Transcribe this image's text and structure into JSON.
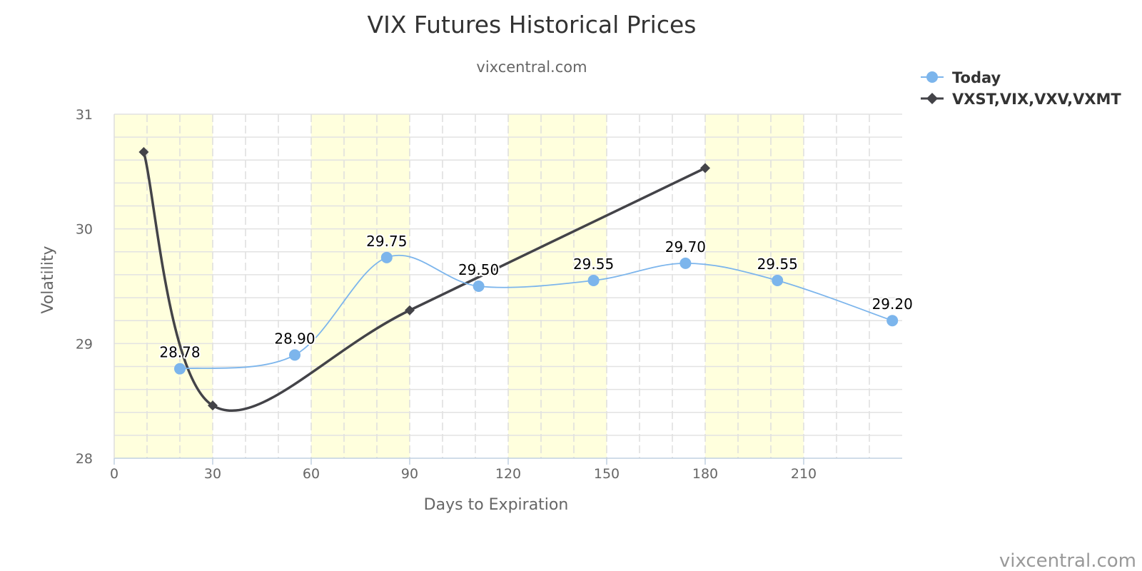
{
  "chart_data": {
    "type": "line",
    "title": "VIX Futures Historical Prices",
    "subtitle": "vixcentral.com",
    "xlabel": "Days to Expiration",
    "ylabel": "Volatility",
    "xlim": [
      0,
      240
    ],
    "ylim": [
      28,
      31
    ],
    "x_ticks": [
      "0",
      "30",
      "60",
      "90",
      "120",
      "150",
      "180",
      "210"
    ],
    "x_tick_values": [
      0,
      30,
      60,
      90,
      120,
      150,
      180,
      210
    ],
    "y_ticks": [
      "28",
      "29",
      "30",
      "31"
    ],
    "y_tick_values": [
      28,
      29,
      30,
      31
    ],
    "grid": true,
    "shaded_bands": [
      [
        0,
        30
      ],
      [
        60,
        90
      ],
      [
        120,
        150
      ],
      [
        180,
        210
      ]
    ],
    "band_color": "#ffffdd",
    "legend_position": "top-right",
    "series": [
      {
        "name": "Today",
        "color": "#7cb5ec",
        "marker": "circle",
        "x": [
          20,
          55,
          83,
          111,
          146,
          174,
          202,
          237
        ],
        "values": [
          28.78,
          28.9,
          29.75,
          29.5,
          29.55,
          29.7,
          29.55,
          29.2
        ],
        "labels": [
          "28.78",
          "28.90",
          "29.75",
          "29.50",
          "29.55",
          "29.70",
          "29.55",
          "29.20"
        ]
      },
      {
        "name": "VXST,VIX,VXV,VXMT",
        "color": "#434348",
        "marker": "diamond",
        "x": [
          9,
          30,
          90,
          180
        ],
        "values": [
          30.67,
          28.46,
          29.29,
          30.53
        ]
      }
    ]
  },
  "credit": "vixcentral.com"
}
